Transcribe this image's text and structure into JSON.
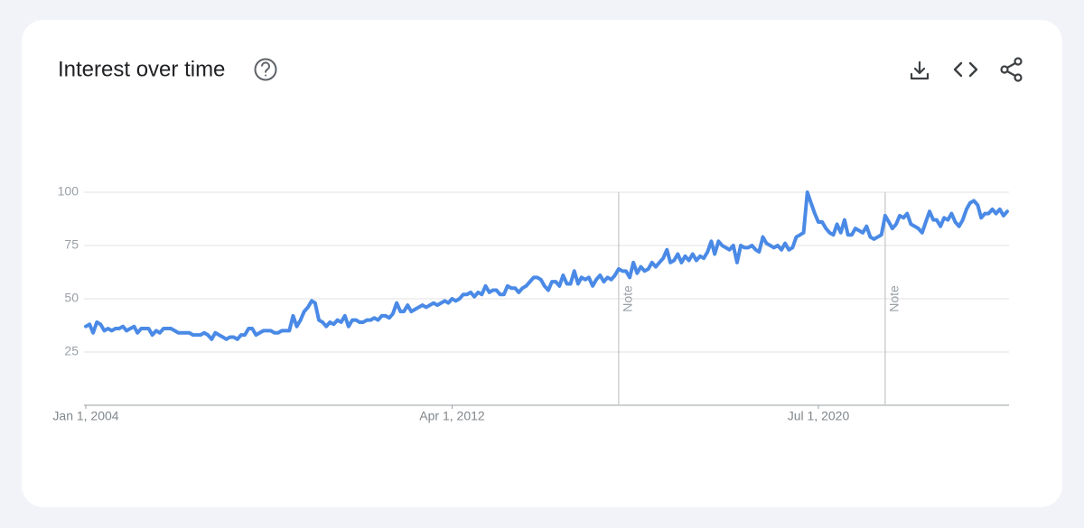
{
  "chart_data": {
    "type": "line",
    "title": "Interest over time",
    "xlim": [
      "2004-01-01",
      "2024-10-01"
    ],
    "xticks": [
      {
        "value": "2004-01-01",
        "label": "Jan 1, 2004"
      },
      {
        "value": "2012-04-01",
        "label": "Apr 1, 2012"
      },
      {
        "value": "2020-07-01",
        "label": "Jul 1, 2020"
      }
    ],
    "ylim": [
      0,
      100
    ],
    "yticks": [
      25,
      50,
      75,
      100
    ],
    "grid": true,
    "annotations": [
      {
        "x": "2016-01-01",
        "label": "Note"
      },
      {
        "x": "2022-01-01",
        "label": "Note"
      }
    ],
    "x": [
      "2004-01-01",
      "2004-02-01",
      "2004-03-01",
      "2004-04-01",
      "2004-05-01",
      "2004-06-01",
      "2004-07-01",
      "2004-08-01",
      "2004-09-01",
      "2004-10-01",
      "2004-11-01",
      "2004-12-01",
      "2005-01-01",
      "2005-02-01",
      "2005-03-01",
      "2005-04-01",
      "2005-05-01",
      "2005-06-01",
      "2005-07-01",
      "2005-08-01",
      "2005-09-01",
      "2005-10-01",
      "2005-11-01",
      "2005-12-01",
      "2006-01-01",
      "2006-02-01",
      "2006-03-01",
      "2006-04-01",
      "2006-05-01",
      "2006-06-01",
      "2006-07-01",
      "2006-08-01",
      "2006-09-01",
      "2006-10-01",
      "2006-11-01",
      "2006-12-01",
      "2007-01-01",
      "2007-02-01",
      "2007-03-01",
      "2007-04-01",
      "2007-05-01",
      "2007-06-01",
      "2007-07-01",
      "2007-08-01",
      "2007-09-01",
      "2007-10-01",
      "2007-11-01",
      "2007-12-01",
      "2008-01-01",
      "2008-02-01",
      "2008-03-01",
      "2008-04-01",
      "2008-05-01",
      "2008-06-01",
      "2008-07-01",
      "2008-08-01",
      "2008-09-01",
      "2008-10-01",
      "2008-11-01",
      "2008-12-01",
      "2009-01-01",
      "2009-02-01",
      "2009-03-01",
      "2009-04-01",
      "2009-05-01",
      "2009-06-01",
      "2009-07-01",
      "2009-08-01",
      "2009-09-01",
      "2009-10-01",
      "2009-11-01",
      "2009-12-01",
      "2010-01-01",
      "2010-02-01",
      "2010-03-01",
      "2010-04-01",
      "2010-05-01",
      "2010-06-01",
      "2010-07-01",
      "2010-08-01",
      "2010-09-01",
      "2010-10-01",
      "2010-11-01",
      "2010-12-01",
      "2011-01-01",
      "2011-02-01",
      "2011-03-01",
      "2011-04-01",
      "2011-05-01",
      "2011-06-01",
      "2011-07-01",
      "2011-08-01",
      "2011-09-01",
      "2011-10-01",
      "2011-11-01",
      "2011-12-01",
      "2012-01-01",
      "2012-02-01",
      "2012-03-01",
      "2012-04-01",
      "2012-05-01",
      "2012-06-01",
      "2012-07-01",
      "2012-08-01",
      "2012-09-01",
      "2012-10-01",
      "2012-11-01",
      "2012-12-01",
      "2013-01-01",
      "2013-02-01",
      "2013-03-01",
      "2013-04-01",
      "2013-05-01",
      "2013-06-01",
      "2013-07-01",
      "2013-08-01",
      "2013-09-01",
      "2013-10-01",
      "2013-11-01",
      "2013-12-01",
      "2014-01-01",
      "2014-02-01",
      "2014-03-01",
      "2014-04-01",
      "2014-05-01",
      "2014-06-01",
      "2014-07-01",
      "2014-08-01",
      "2014-09-01",
      "2014-10-01",
      "2014-11-01",
      "2014-12-01",
      "2015-01-01",
      "2015-02-01",
      "2015-03-01",
      "2015-04-01",
      "2015-05-01",
      "2015-06-01",
      "2015-07-01",
      "2015-08-01",
      "2015-09-01",
      "2015-10-01",
      "2015-11-01",
      "2015-12-01",
      "2016-01-01",
      "2016-02-01",
      "2016-03-01",
      "2016-04-01",
      "2016-05-01",
      "2016-06-01",
      "2016-07-01",
      "2016-08-01",
      "2016-09-01",
      "2016-10-01",
      "2016-11-01",
      "2016-12-01",
      "2017-01-01",
      "2017-02-01",
      "2017-03-01",
      "2017-04-01",
      "2017-05-01",
      "2017-06-01",
      "2017-07-01",
      "2017-08-01",
      "2017-09-01",
      "2017-10-01",
      "2017-11-01",
      "2017-12-01",
      "2018-01-01",
      "2018-02-01",
      "2018-03-01",
      "2018-04-01",
      "2018-05-01",
      "2018-06-01",
      "2018-07-01",
      "2018-08-01",
      "2018-09-01",
      "2018-10-01",
      "2018-11-01",
      "2018-12-01",
      "2019-01-01",
      "2019-02-01",
      "2019-03-01",
      "2019-04-01",
      "2019-05-01",
      "2019-06-01",
      "2019-07-01",
      "2019-08-01",
      "2019-09-01",
      "2019-10-01",
      "2019-11-01",
      "2019-12-01",
      "2020-01-01",
      "2020-02-01",
      "2020-03-01",
      "2020-04-01",
      "2020-05-01",
      "2020-06-01",
      "2020-07-01",
      "2020-08-01",
      "2020-09-01",
      "2020-10-01",
      "2020-11-01",
      "2020-12-01",
      "2021-01-01",
      "2021-02-01",
      "2021-03-01",
      "2021-04-01",
      "2021-05-01",
      "2021-06-01",
      "2021-07-01",
      "2021-08-01",
      "2021-09-01",
      "2021-10-01",
      "2021-11-01",
      "2021-12-01",
      "2022-01-01",
      "2022-02-01",
      "2022-03-01",
      "2022-04-01",
      "2022-05-01",
      "2022-06-01",
      "2022-07-01",
      "2022-08-01",
      "2022-09-01",
      "2022-10-01",
      "2022-11-01",
      "2022-12-01",
      "2023-01-01",
      "2023-02-01",
      "2023-03-01",
      "2023-04-01",
      "2023-05-01",
      "2023-06-01",
      "2023-07-01",
      "2023-08-01",
      "2023-09-01",
      "2023-10-01",
      "2023-11-01",
      "2023-12-01",
      "2024-01-01",
      "2024-02-01",
      "2024-03-01",
      "2024-04-01",
      "2024-05-01",
      "2024-06-01",
      "2024-07-01",
      "2024-08-01",
      "2024-09-01",
      "2024-10-01"
    ],
    "series": [
      {
        "color": "#4a8ae6",
        "values": [
          37,
          38,
          34,
          39,
          38,
          35,
          36,
          35,
          36,
          36,
          37,
          35,
          36,
          37,
          34,
          36,
          36,
          36,
          33,
          35,
          34,
          36,
          36,
          36,
          35,
          34,
          34,
          34,
          34,
          33,
          33,
          33,
          34,
          33,
          31,
          34,
          33,
          32,
          31,
          32,
          32,
          31,
          33,
          33,
          36,
          36,
          33,
          34,
          35,
          35,
          35,
          34,
          34,
          35,
          35,
          35,
          42,
          37,
          40,
          44,
          46,
          49,
          48,
          40,
          39,
          37,
          39,
          38,
          40,
          39,
          42,
          37,
          40,
          40,
          39,
          39,
          40,
          40,
          41,
          40,
          42,
          42,
          41,
          43,
          48,
          44,
          44,
          47,
          44,
          45,
          46,
          47,
          46,
          47,
          48,
          47,
          48,
          49,
          48,
          50,
          49,
          50,
          52,
          52,
          53,
          51,
          53,
          52,
          56,
          53,
          54,
          54,
          52,
          52,
          56,
          55,
          55,
          53,
          55,
          56,
          58,
          60,
          60,
          59,
          56,
          54,
          58,
          58,
          56,
          61,
          57,
          57,
          63,
          57,
          60,
          59,
          60,
          56,
          59,
          61,
          58,
          60,
          59,
          61,
          64,
          63,
          63,
          60,
          67,
          62,
          65,
          63,
          64,
          67,
          65,
          67,
          69,
          73,
          67,
          68,
          71,
          67,
          70,
          68,
          71,
          68,
          70,
          69,
          72,
          77,
          71,
          77,
          75,
          74,
          73,
          75,
          67,
          75,
          74,
          74,
          75,
          73,
          72,
          79,
          76,
          75,
          74,
          75,
          73,
          76,
          73,
          74,
          79,
          80,
          81,
          100,
          95,
          90,
          86,
          86,
          83,
          81,
          80,
          85,
          81,
          87,
          80,
          80,
          83,
          82,
          81,
          84,
          79,
          78,
          79,
          80,
          89,
          86,
          83,
          85,
          89,
          88,
          90,
          85,
          84,
          83,
          81,
          86,
          91,
          87,
          87,
          84,
          88,
          87,
          90,
          86,
          84,
          87,
          92,
          95,
          96,
          94,
          88,
          90,
          90,
          92,
          90,
          92,
          89,
          91
        ]
      }
    ]
  }
}
